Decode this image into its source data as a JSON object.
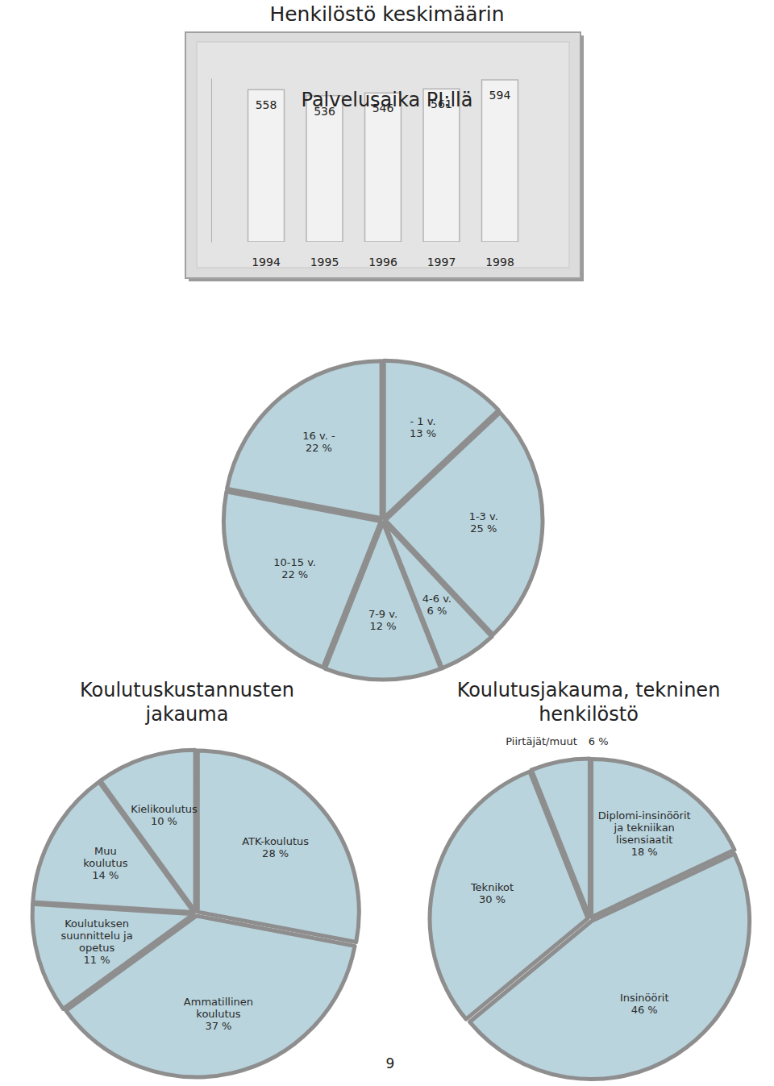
{
  "chart_data": [
    {
      "type": "bar",
      "title": "Henkilöstö keskimäärin",
      "categories": [
        "1994",
        "1995",
        "1996",
        "1997",
        "1998"
      ],
      "values": [
        558,
        536,
        546,
        561,
        594
      ],
      "color": "#f2f2f2",
      "ylim": [
        0,
        600
      ],
      "data_labels": true,
      "tick_labels": "x"
    },
    {
      "type": "pie",
      "title": "Palvelusaika PI:llä",
      "categories": [
        "- 1 v.",
        "1-3 v.",
        "4-6 v.",
        "7-9 v.",
        "10-15 v.",
        "16 v. -"
      ],
      "values": [
        13,
        25,
        6,
        12,
        22,
        22
      ],
      "value_labels": [
        "13 %",
        "25 %",
        "6 %",
        "12 %",
        "22 %",
        "22 %"
      ],
      "color": "#b9d4dd",
      "data_labels": true
    },
    {
      "type": "pie",
      "title": "Koulutuskustannusten\njakauma",
      "categories": [
        "ATK-koulutus",
        "Ammatillinen\nkoulutus",
        "Koulutuksen\nsuunnittelu ja\nopetus",
        "Muu\nkoulutus",
        "Kielikoulutus"
      ],
      "values": [
        28,
        37,
        11,
        14,
        10
      ],
      "value_labels": [
        "28 %",
        "37 %",
        "11 %",
        "14 %",
        "10 %"
      ],
      "color": "#b9d4dd",
      "data_labels": true
    },
    {
      "type": "pie",
      "title": "Koulutusjakauma, tekninen\nhenkilöstö",
      "categories": [
        "Diplomi-insinöörit\nja tekniikan\nlisensiaatit",
        "Insinöörit",
        "Teknikot",
        "Piirtäjät/muut"
      ],
      "values": [
        18,
        46,
        30,
        6
      ],
      "value_labels": [
        "18 %",
        "46 %",
        "30 %",
        "6 %"
      ],
      "color": "#b9d4dd",
      "data_labels": true
    }
  ],
  "page_number": 9
}
